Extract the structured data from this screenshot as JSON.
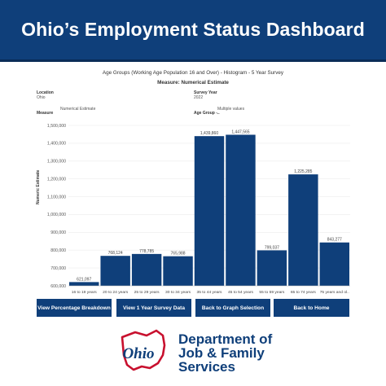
{
  "header": {
    "title": "Ohio’s Employment Status Dashboard"
  },
  "chart_data": {
    "type": "bar",
    "title": "Age Groups (Working Age Population 16 and Over) - Histogram - 5 Year Survey",
    "subtitle": "Measure: Numerical Estimate",
    "ylabel": "Numeric Estimate",
    "xlabel": "",
    "categories": [
      "16 to 19 years",
      "20 to 24 years",
      "25 to 29 years",
      "30 to 34 years",
      "35 to 44 years",
      "45 to 54 years",
      "55 to 59 years",
      "65 to 74 years",
      "75 years and ol.."
    ],
    "values": [
      621097,
      768124,
      778785,
      765988,
      1439860,
      1447565,
      799037,
      1225285,
      843277
    ],
    "value_labels": [
      "621,097",
      "768,124",
      "778,785",
      "765,988",
      "1,439,860",
      "1,447,565",
      "799,037",
      "1,225,285",
      "843,277"
    ],
    "yticks": [
      600000,
      700000,
      800000,
      900000,
      1000000,
      1100000,
      1200000,
      1300000,
      1400000,
      1500000
    ],
    "ytick_labels": [
      "600,000",
      "700,000",
      "800,000",
      "900,000",
      "1,000,000",
      "1,100,000",
      "1,200,000",
      "1,300,000",
      "1,400,000",
      "1,500,000"
    ],
    "ylim": [
      600000,
      1500000
    ],
    "bar_color": "#0f3f7a",
    "grid": true
  },
  "filters": {
    "location_label": "Location",
    "location_value": "Ohio",
    "survey_year_label": "Survey Year",
    "survey_year_value": "2022",
    "measure_label": "Measure",
    "measure_value": "Numerical Estimate",
    "age_group_label": "Age Group -..",
    "age_group_value": "Multiple values"
  },
  "buttons": {
    "percentage": "View Percentage Breakdown",
    "one_year": "View 1 Year Survey Data",
    "graph_selection": "Back to Graph Selection",
    "home": "Back to Home"
  },
  "footer": {
    "logo_text": "Ohio",
    "dept_line1": "Department of",
    "dept_line2": "Job & Family",
    "dept_line3": "Services"
  },
  "colors": {
    "brand_blue": "#0f3f7a",
    "logo_red": "#c8102e"
  }
}
